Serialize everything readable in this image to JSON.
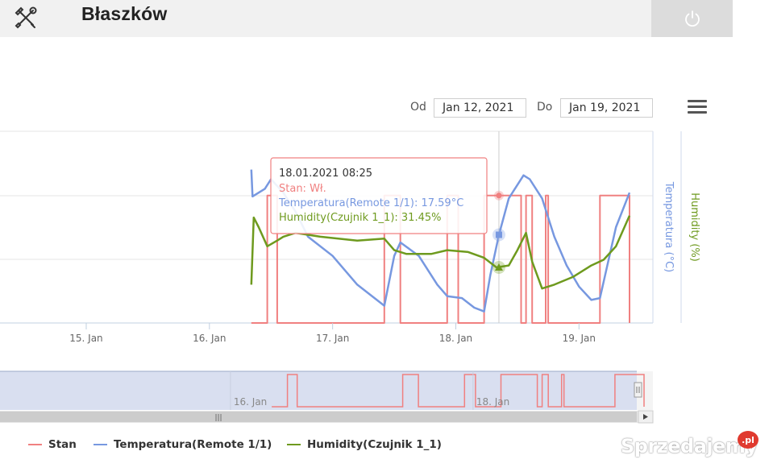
{
  "app": {
    "title": "Błaszków"
  },
  "icons": {
    "tools": "tools-icon",
    "power": "power-icon",
    "menu": "hamburger-menu-icon"
  },
  "date_range": {
    "from_label": "Od",
    "from_value": "Jan 12, 2021",
    "to_label": "Do",
    "to_value": "Jan 19, 2021"
  },
  "colors": {
    "stan": "#f08080",
    "temperatura": "#7798e0",
    "humidity": "#6e9a1e",
    "navigator_fill": "#d4dbee"
  },
  "tooltip": {
    "timestamp": "18.01.2021 08:25",
    "stan": "Stan: Wł.",
    "temperatura": "Temperatura(Remote 1/1): 17.59°C",
    "humidity": "Humidity(Czujnik 1_1): 31.45%"
  },
  "chart_data": {
    "type": "line",
    "x_ticks": [
      "15. Jan",
      "16. Jan",
      "17. Jan",
      "18. Jan",
      "19. Jan"
    ],
    "navigator_ticks": [
      "16. Jan",
      "18. Jan"
    ],
    "y_axes": [
      "Temperatura (°C)",
      "Humidity (%)"
    ],
    "grid": true,
    "series": [
      {
        "name": "Stan",
        "type": "step",
        "points": [
          [
            16.34,
            0
          ],
          [
            16.47,
            0
          ],
          [
            16.47,
            1
          ],
          [
            16.55,
            1
          ],
          [
            16.55,
            0
          ],
          [
            17.42,
            0
          ],
          [
            17.42,
            1
          ],
          [
            17.55,
            1
          ],
          [
            17.55,
            0
          ],
          [
            17.93,
            0
          ],
          [
            17.93,
            1
          ],
          [
            18.02,
            1
          ],
          [
            18.02,
            0
          ],
          [
            18.23,
            0
          ],
          [
            18.23,
            1
          ],
          [
            18.53,
            1
          ],
          [
            18.53,
            0
          ],
          [
            18.57,
            0
          ],
          [
            18.57,
            1
          ],
          [
            18.62,
            1
          ],
          [
            18.62,
            0
          ],
          [
            18.73,
            0
          ],
          [
            18.73,
            1
          ],
          [
            18.75,
            1
          ],
          [
            18.75,
            0
          ],
          [
            19.17,
            0
          ],
          [
            19.17,
            1
          ],
          [
            19.41,
            1
          ],
          [
            19.41,
            0
          ]
        ]
      },
      {
        "name": "Temperatura(Remote 1/1)",
        "points": [
          [
            16.34,
            0.8
          ],
          [
            16.35,
            0.66
          ],
          [
            16.45,
            0.7
          ],
          [
            16.5,
            0.75
          ],
          [
            16.6,
            0.68
          ],
          [
            16.7,
            0.58
          ],
          [
            16.8,
            0.45
          ],
          [
            17.0,
            0.35
          ],
          [
            17.2,
            0.2
          ],
          [
            17.42,
            0.09
          ],
          [
            17.5,
            0.35
          ],
          [
            17.55,
            0.42
          ],
          [
            17.7,
            0.35
          ],
          [
            17.85,
            0.2
          ],
          [
            17.93,
            0.14
          ],
          [
            18.05,
            0.13
          ],
          [
            18.15,
            0.08
          ],
          [
            18.23,
            0.06
          ],
          [
            18.28,
            0.25
          ],
          [
            18.35,
            0.46
          ],
          [
            18.43,
            0.65
          ],
          [
            18.5,
            0.72
          ],
          [
            18.55,
            0.77
          ],
          [
            18.6,
            0.75
          ],
          [
            18.7,
            0.65
          ],
          [
            18.8,
            0.45
          ],
          [
            18.9,
            0.3
          ],
          [
            19.0,
            0.19
          ],
          [
            19.1,
            0.12
          ],
          [
            19.17,
            0.13
          ],
          [
            19.3,
            0.5
          ],
          [
            19.41,
            0.68
          ]
        ]
      },
      {
        "name": "Humidity(Czujnik 1_1)",
        "points": [
          [
            16.34,
            0.2
          ],
          [
            16.36,
            0.55
          ],
          [
            16.4,
            0.5
          ],
          [
            16.47,
            0.4
          ],
          [
            16.55,
            0.43
          ],
          [
            16.6,
            0.45
          ],
          [
            16.7,
            0.47
          ],
          [
            16.9,
            0.45
          ],
          [
            17.2,
            0.43
          ],
          [
            17.42,
            0.44
          ],
          [
            17.5,
            0.38
          ],
          [
            17.6,
            0.36
          ],
          [
            17.8,
            0.36
          ],
          [
            17.93,
            0.38
          ],
          [
            18.1,
            0.37
          ],
          [
            18.23,
            0.34
          ],
          [
            18.33,
            0.29
          ],
          [
            18.43,
            0.3
          ],
          [
            18.5,
            0.38
          ],
          [
            18.57,
            0.47
          ],
          [
            18.62,
            0.32
          ],
          [
            18.7,
            0.18
          ],
          [
            18.8,
            0.2
          ],
          [
            18.95,
            0.24
          ],
          [
            19.1,
            0.3
          ],
          [
            19.2,
            0.33
          ],
          [
            19.3,
            0.4
          ],
          [
            19.41,
            0.56
          ]
        ]
      }
    ]
  },
  "legend": [
    {
      "label": "Stan"
    },
    {
      "label": "Temperatura(Remote 1/1)"
    },
    {
      "label": "Humidity(Czujnik 1_1)"
    }
  ],
  "watermark": {
    "text": "Sprzedajemy",
    "badge": ".pl"
  }
}
